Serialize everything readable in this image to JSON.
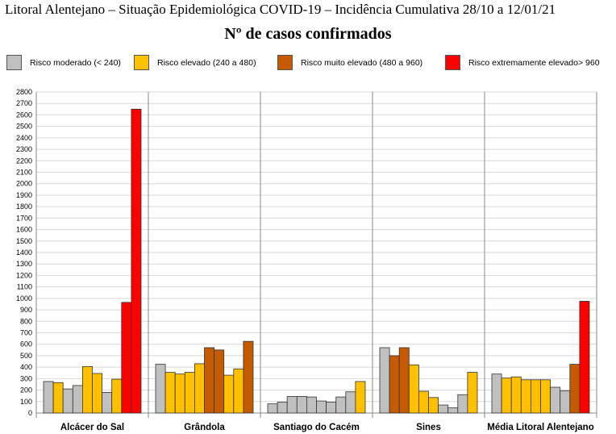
{
  "chart_data": {
    "type": "bar",
    "title": "Litoral Alentejano – Situação Epidemiológica COVID-19 – Incidência Cumulativa  28/10 a 12/01/21",
    "subtitle": "Nº de casos confirmados",
    "ylim": [
      0,
      2800
    ],
    "yticks": [
      0,
      100,
      200,
      300,
      400,
      500,
      600,
      700,
      800,
      900,
      1000,
      1100,
      1200,
      1300,
      1400,
      1500,
      1600,
      1700,
      1800,
      1900,
      2000,
      2100,
      2200,
      2300,
      2400,
      2500,
      2600,
      2700,
      2800
    ],
    "grid": true,
    "legend": [
      {
        "label": "Risco moderado (< 240)",
        "color": "#c0c0c0",
        "key": "g"
      },
      {
        "label": "Risco elevado (240 a 480)",
        "color": "#ffc000",
        "key": "y"
      },
      {
        "label": "Risco muito elevado (480 a 960)",
        "color": "#c55a00",
        "key": "o"
      },
      {
        "label": "Risco extremamente elevado> 960",
        "color": "#ff0000",
        "key": "r"
      }
    ],
    "categories": [
      "Alcácer do Sal",
      "Grândola",
      "Santiago do Cacém",
      "Sines",
      "Média Litoral Alentejano"
    ],
    "groups": [
      {
        "values": [
          275,
          265,
          210,
          240,
          405,
          345,
          180,
          295,
          965,
          2650
        ],
        "risk": [
          "g",
          "y",
          "g",
          "g",
          "y",
          "y",
          "g",
          "y",
          "r",
          "r"
        ]
      },
      {
        "values": [
          425,
          355,
          340,
          355,
          430,
          570,
          550,
          330,
          385,
          625
        ],
        "risk": [
          "g",
          "y",
          "y",
          "y",
          "y",
          "o",
          "o",
          "y",
          "y",
          "o"
        ]
      },
      {
        "values": [
          80,
          95,
          145,
          145,
          140,
          105,
          95,
          140,
          185,
          275
        ],
        "risk": [
          "g",
          "g",
          "g",
          "g",
          "g",
          "g",
          "g",
          "g",
          "g",
          "y"
        ]
      },
      {
        "values": [
          570,
          500,
          570,
          420,
          190,
          135,
          70,
          45,
          160,
          355
        ],
        "risk": [
          "g",
          "o",
          "o",
          "y",
          "y",
          "y",
          "g",
          "g",
          "g",
          "y"
        ]
      },
      {
        "values": [
          340,
          305,
          315,
          290,
          290,
          290,
          225,
          195,
          425,
          975
        ],
        "risk": [
          "g",
          "y",
          "y",
          "y",
          "y",
          "y",
          "g",
          "g",
          "o",
          "r"
        ]
      }
    ]
  }
}
